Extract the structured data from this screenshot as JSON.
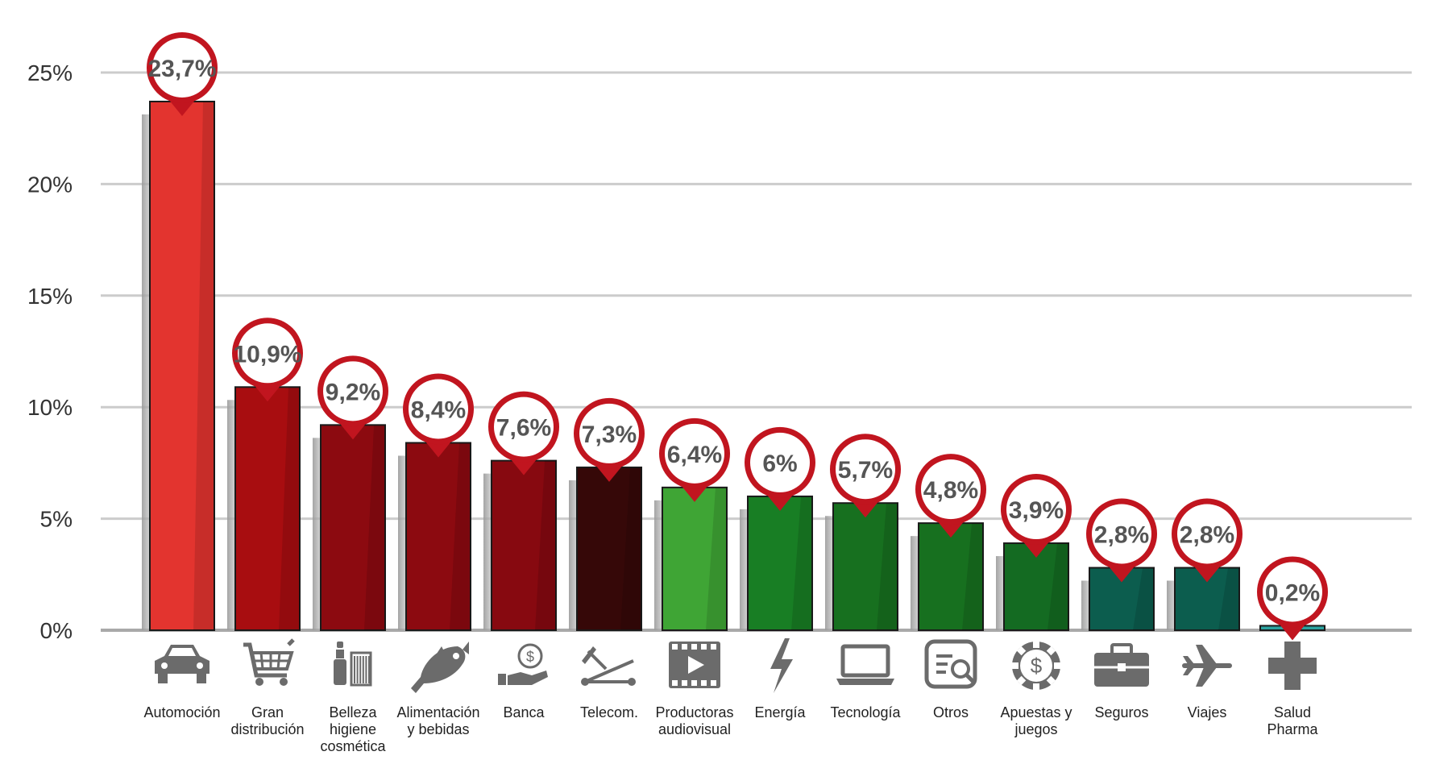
{
  "chart_data": {
    "type": "bar",
    "categories": [
      [
        "Automoción"
      ],
      [
        "Gran",
        "distribución"
      ],
      [
        "Belleza",
        "higiene",
        "cosmética"
      ],
      [
        "Alimentación",
        "y bebidas"
      ],
      [
        "Banca"
      ],
      [
        "Telecom."
      ],
      [
        "Productoras",
        "audiovisual"
      ],
      [
        "Energía"
      ],
      [
        "Tecnología"
      ],
      [
        "Otros"
      ],
      [
        "Apuestas y",
        "juegos"
      ],
      [
        "Seguros"
      ],
      [
        "Viajes"
      ],
      [
        "Salud",
        "Pharma"
      ]
    ],
    "values": [
      23.7,
      10.9,
      9.2,
      8.4,
      7.6,
      7.3,
      6.4,
      6,
      5.7,
      4.8,
      3.9,
      2.8,
      2.8,
      0.2
    ],
    "value_labels": [
      "23,7%",
      "10,9%",
      "9,2%",
      "8,4%",
      "7,6%",
      "7,3%",
      "6,4%",
      "6%",
      "5,7%",
      "4,8%",
      "3,9%",
      "2,8%",
      "2,8%",
      "0,2%"
    ],
    "icons": [
      "car-icon",
      "shopping-cart-icon",
      "cosmetics-icon",
      "fish-icon",
      "hand-coin-icon",
      "telecom-icon",
      "film-icon",
      "lightning-icon",
      "laptop-icon",
      "document-search-icon",
      "casino-chip-icon",
      "briefcase-icon",
      "airplane-icon",
      "cross-icon"
    ],
    "bar_colors": [
      "#e3342f",
      "#a80d10",
      "#8c0a10",
      "#8c0a10",
      "#870910",
      "#360808",
      "#3fa535",
      "#187e24",
      "#17701f",
      "#17701f",
      "#146b22",
      "#0c5d4e",
      "#0c5d4e",
      "#2ba3a0"
    ],
    "marker_color": "#c1151f",
    "ytick_values": [
      0,
      5,
      10,
      15,
      20,
      25
    ],
    "ytick_labels": [
      "0%",
      "5%",
      "10%",
      "15%",
      "20%",
      "25%"
    ],
    "ylim": [
      0,
      25
    ],
    "grid": true,
    "xlabel": "",
    "ylabel": ""
  }
}
